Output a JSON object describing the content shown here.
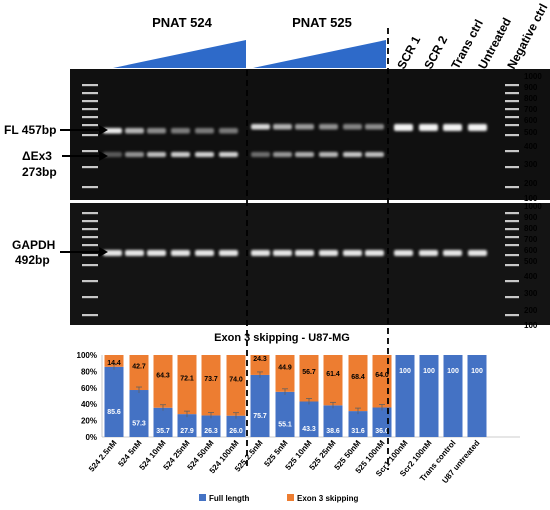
{
  "header": {
    "group1": "PNAT 524",
    "group2": "PNAT 525",
    "controls": [
      "SCR 1",
      "SCR 2",
      "Trans ctrl",
      "Untreated",
      "Negative ctrl"
    ]
  },
  "gel_labels": {
    "fl": "FL 457bp",
    "dex3_line1": "ΔEx3",
    "dex3_line2": "273bp",
    "gapdh_line1": "GAPDH",
    "gapdh_line2": "492bp"
  },
  "ladder_top": [
    "1000",
    "900",
    "800",
    "700",
    "600",
    "500",
    "400",
    "300",
    "200",
    "100"
  ],
  "ladder_bottom": [
    "1000",
    "900",
    "800",
    "700",
    "600",
    "500",
    "400",
    "300",
    "200",
    "100"
  ],
  "colors": {
    "full_length": "#4472C4",
    "exon3": "#ED7D31",
    "triangle": "#2E6AC9"
  },
  "chart_data": {
    "type": "bar",
    "stacked": true,
    "title": "Exon 3 skipping - U87-MG",
    "categories": [
      "524 2.5nM",
      "524 5nM",
      "524 10nM",
      "524 25nM",
      "524 50nM",
      "524 100nM",
      "525 2.5nM",
      "525 5nM",
      "525 10nM",
      "525 25nM",
      "525 50nM",
      "525 100nM",
      "Scr1 100nM",
      "Scr2 100nM",
      "Trans control",
      "U87 untreated"
    ],
    "series": [
      {
        "name": "Full length",
        "values": [
          85.6,
          57.3,
          35.7,
          27.9,
          26.3,
          26.0,
          75.7,
          55.1,
          43.3,
          38.6,
          31.6,
          36.0,
          100,
          100,
          100,
          100
        ],
        "labels": [
          "85.6",
          "57.3",
          "35.7",
          "27.9",
          "26.3",
          "26.0",
          "75.7",
          "55.1",
          "43.3",
          "38.6",
          "31.6",
          "36.0",
          "100",
          "100",
          "100",
          "100"
        ]
      },
      {
        "name": "Exon 3 skipping",
        "values": [
          14.4,
          42.7,
          64.3,
          72.1,
          73.7,
          74.0,
          24.3,
          44.9,
          56.7,
          61.4,
          68.4,
          64.0,
          0,
          0,
          0,
          0
        ],
        "labels": [
          "14.4",
          "42.7",
          "64.3",
          "72.1",
          "73.7",
          "74.0",
          "24.3",
          "44.9",
          "56.7",
          "61.4",
          "68.4",
          "64.0",
          "",
          "",
          "",
          ""
        ]
      }
    ],
    "yticks": [
      "0%",
      "20%",
      "40%",
      "60%",
      "80%",
      "100%"
    ],
    "ylim": [
      0,
      100
    ],
    "legend_position": "bottom"
  }
}
